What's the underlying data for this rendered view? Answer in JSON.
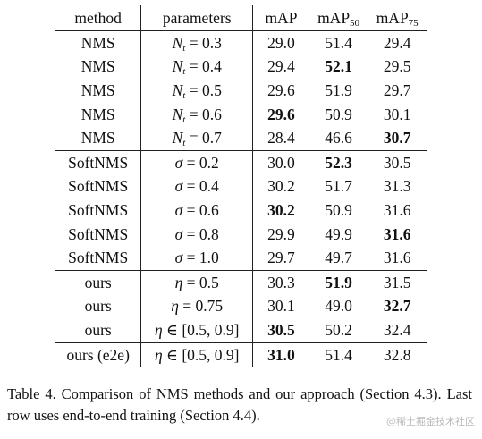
{
  "header": {
    "method": "method",
    "parameters": "parameters",
    "map": "mAP",
    "map50_base": "mAP",
    "map50_sub": "50",
    "map75_base": "mAP",
    "map75_sub": "75"
  },
  "rows": [
    {
      "method": "NMS",
      "pvar": "N",
      "psub": "t",
      "prest": " = 0.3",
      "map": "29.0",
      "map50": "51.4",
      "map75": "29.4",
      "bold": []
    },
    {
      "method": "NMS",
      "pvar": "N",
      "psub": "t",
      "prest": " = 0.4",
      "map": "29.4",
      "map50": "52.1",
      "map75": "29.5",
      "bold": [
        "map50"
      ]
    },
    {
      "method": "NMS",
      "pvar": "N",
      "psub": "t",
      "prest": " = 0.5",
      "map": "29.6",
      "map50": "51.9",
      "map75": "29.7",
      "bold": []
    },
    {
      "method": "NMS",
      "pvar": "N",
      "psub": "t",
      "prest": " = 0.6",
      "map": "29.6",
      "map50": "50.9",
      "map75": "30.1",
      "bold": [
        "map"
      ]
    },
    {
      "method": "NMS",
      "pvar": "N",
      "psub": "t",
      "prest": " = 0.7",
      "map": "28.4",
      "map50": "46.6",
      "map75": "30.7",
      "bold": [
        "map75"
      ],
      "groupEnd": true
    },
    {
      "method": "SoftNMS",
      "pvar": "σ",
      "psub": "",
      "prest": " = 0.2",
      "map": "30.0",
      "map50": "52.3",
      "map75": "30.5",
      "bold": [
        "map50"
      ]
    },
    {
      "method": "SoftNMS",
      "pvar": "σ",
      "psub": "",
      "prest": " = 0.4",
      "map": "30.2",
      "map50": "51.7",
      "map75": "31.3",
      "bold": []
    },
    {
      "method": "SoftNMS",
      "pvar": "σ",
      "psub": "",
      "prest": " = 0.6",
      "map": "30.2",
      "map50": "50.9",
      "map75": "31.6",
      "bold": [
        "map"
      ]
    },
    {
      "method": "SoftNMS",
      "pvar": "σ",
      "psub": "",
      "prest": " = 0.8",
      "map": "29.9",
      "map50": "49.9",
      "map75": "31.6",
      "bold": [
        "map75"
      ]
    },
    {
      "method": "SoftNMS",
      "pvar": "σ",
      "psub": "",
      "prest": " = 1.0",
      "map": "29.7",
      "map50": "49.7",
      "map75": "31.6",
      "bold": [],
      "groupEnd": true
    },
    {
      "method": "ours",
      "pvar": "η",
      "psub": "",
      "prest": " = 0.5",
      "map": "30.3",
      "map50": "51.9",
      "map75": "31.5",
      "bold": [
        "map50"
      ]
    },
    {
      "method": "ours",
      "pvar": "η",
      "psub": "",
      "prest": " = 0.75",
      "map": "30.1",
      "map50": "49.0",
      "map75": "32.7",
      "bold": [
        "map75"
      ]
    },
    {
      "method": "ours",
      "pvar": "η",
      "psub": "",
      "prest": " ∈ [0.5, 0.9]",
      "map": "30.5",
      "map50": "50.2",
      "map75": "32.4",
      "bold": [
        "map"
      ],
      "groupEnd": true
    },
    {
      "method": "ours (e2e)",
      "pvar": "η",
      "psub": "",
      "prest": " ∈ [0.5, 0.9]",
      "map": "31.0",
      "map50": "51.4",
      "map75": "32.8",
      "bold": [
        "map"
      ],
      "groupEnd": true
    }
  ],
  "caption": "Table 4. Comparison of NMS methods and our approach (Section 4.3). Last row uses end-to-end training (Section 4.4).",
  "watermark": "@稀土掘金技术社区"
}
